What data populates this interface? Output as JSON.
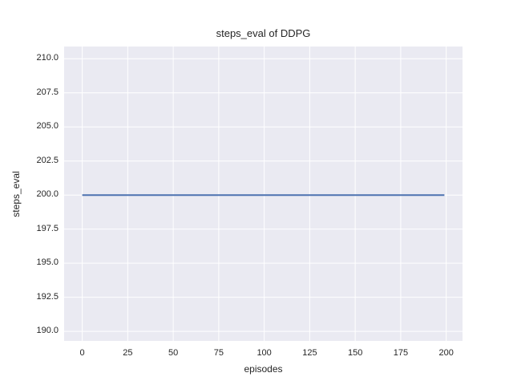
{
  "figure": {
    "background_color": "#ffffff",
    "axes_background_color": "#eaeaf2",
    "grid_color": "#ffffff",
    "text_color": "#262626",
    "style": "seaborn-darkgrid"
  },
  "chart_data": {
    "type": "line",
    "title": "steps_eval of DDPG",
    "xlabel": "episodes",
    "ylabel": "steps_eval",
    "xlim": [
      -9.95,
      208.95
    ],
    "ylim": [
      189.3,
      210.9
    ],
    "xticks": [
      0,
      25,
      50,
      75,
      100,
      125,
      150,
      175,
      200
    ],
    "xtick_labels": [
      "0",
      "25",
      "50",
      "75",
      "100",
      "125",
      "150",
      "175",
      "200"
    ],
    "yticks": [
      190.0,
      192.5,
      195.0,
      197.5,
      200.0,
      202.5,
      205.0,
      207.5,
      210.0
    ],
    "ytick_labels": [
      "190.0",
      "192.5",
      "195.0",
      "197.5",
      "200.0",
      "202.5",
      "205.0",
      "207.5",
      "210.0"
    ],
    "grid": true,
    "legend": false,
    "series": [
      {
        "name": "steps_eval",
        "color": "#4c72b0",
        "linewidth": 2,
        "description": "constant value 200 for every episode from 0 to 199",
        "x": [
          0,
          199
        ],
        "y": [
          200,
          200
        ]
      }
    ]
  }
}
